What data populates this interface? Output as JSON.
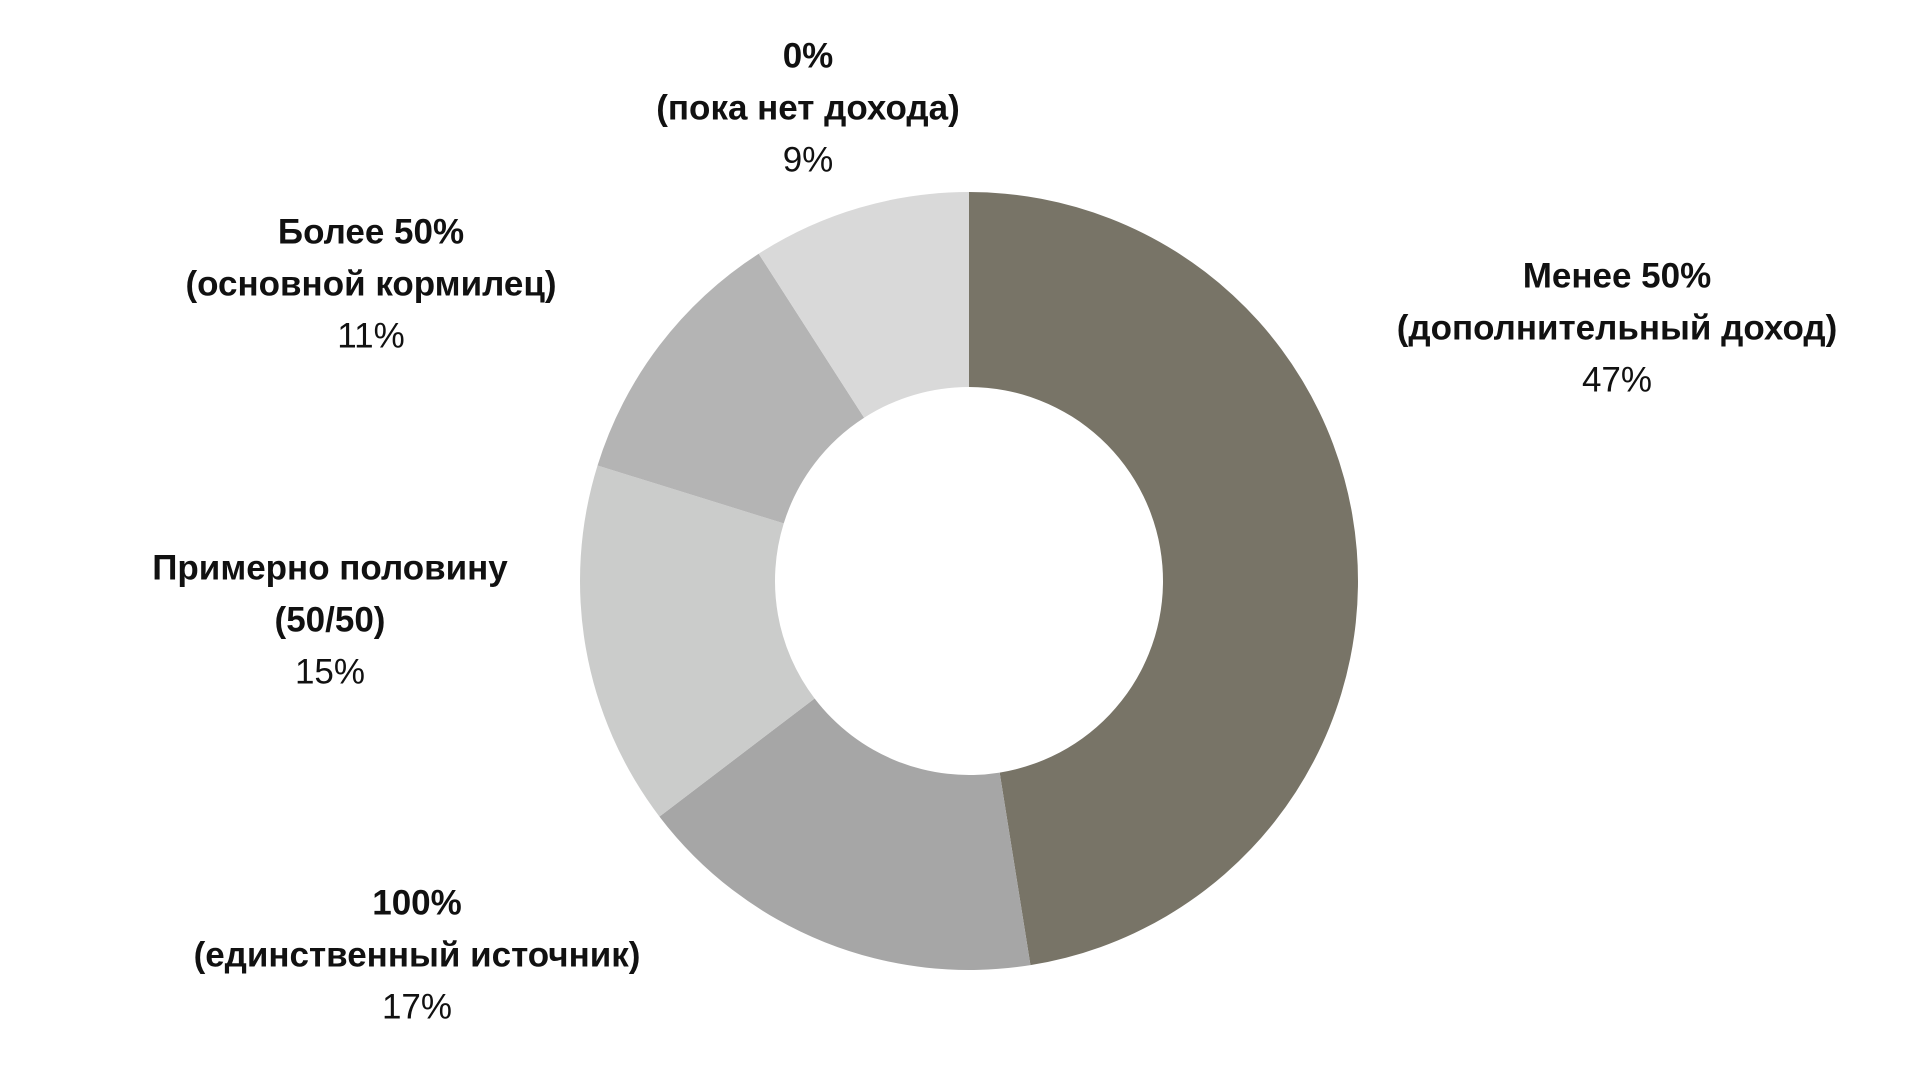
{
  "chart_data": {
    "type": "donut",
    "categories": [
      [
        "Менее 50%",
        "(дополнительный доход)"
      ],
      [
        "100%",
        "(единственный источник)"
      ],
      [
        "Примерно половину",
        "(50/50)"
      ],
      [
        "Более 50%",
        "(основной кормилец)"
      ],
      [
        "0%",
        "(пока нет дохода)"
      ]
    ],
    "values": [
      47,
      17,
      15,
      11,
      9
    ],
    "value_labels": [
      "47%",
      "17%",
      "15%",
      "11%",
      "9%"
    ],
    "colors": [
      "#787467",
      "#a6a6a6",
      "#cbcccb",
      "#b4b4b4",
      "#d9d9d9"
    ]
  }
}
